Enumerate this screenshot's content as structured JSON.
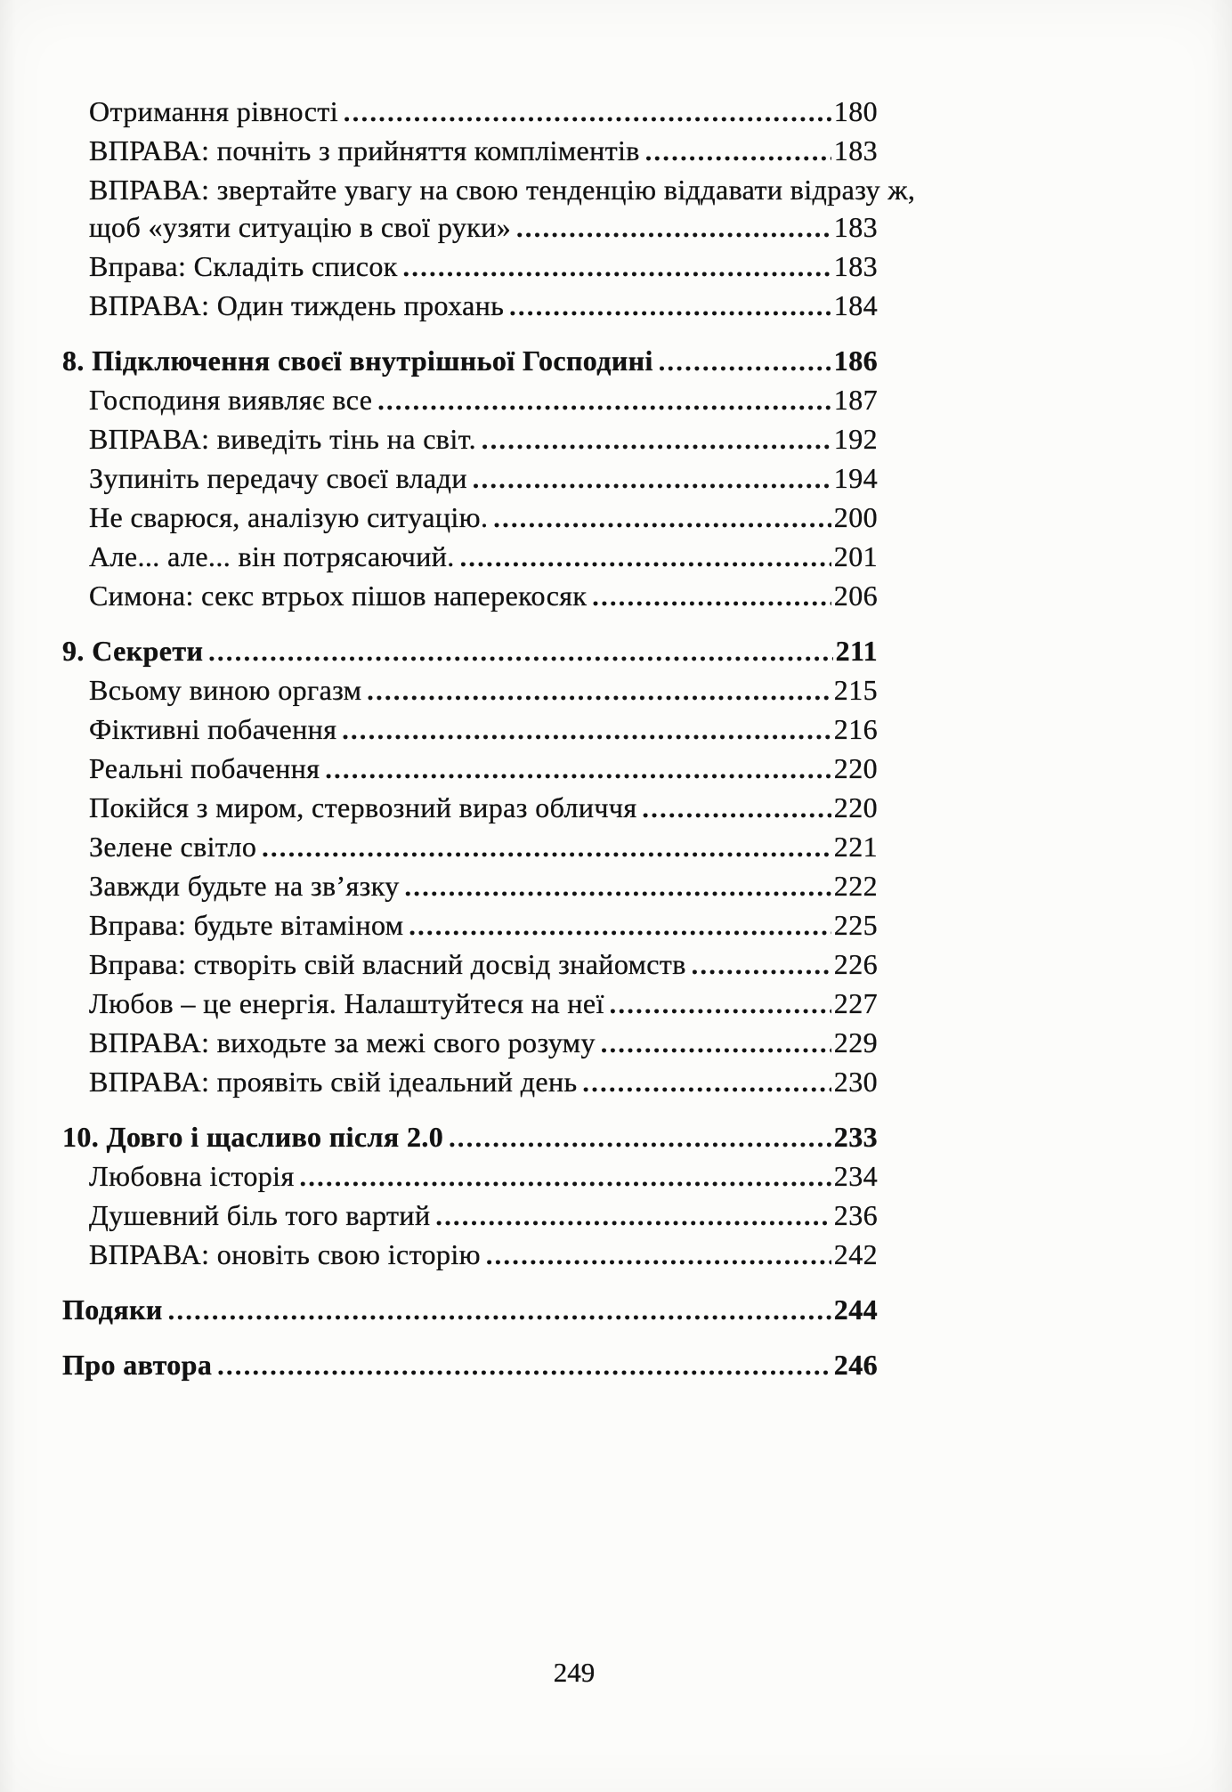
{
  "toc": {
    "entries": [
      {
        "text": "Отримання рівності",
        "page": "180"
      },
      {
        "text": "ВПРАВА: почніть з прийняття компліментів",
        "page": "183"
      },
      {
        "text": "ВПРАВА: звертайте увагу на свою тенденцію віддавати відразу ж,",
        "page": ""
      },
      {
        "text": "щоб «узяти ситуацію в свої руки»",
        "page": "183"
      },
      {
        "text": "Вправа: Складіть список",
        "page": "183"
      },
      {
        "text": "ВПРАВА: Один тиждень прохань",
        "page": "184"
      },
      {
        "text": "8. Підключення своєї внутрішньої Господині",
        "page": "186",
        "bold": true,
        "gap": true
      },
      {
        "text": "Господиня виявляє все",
        "page": "187"
      },
      {
        "text": "ВПРАВА: виведіть тінь на світ.",
        "page": "192"
      },
      {
        "text": "Зупиніть передачу своєї влади",
        "page": "194"
      },
      {
        "text": "Не сварюся, аналізую ситуацію.",
        "page": "200"
      },
      {
        "text": "Але... але... він потрясаючий.",
        "page": "201"
      },
      {
        "text": "Симона: секс втрьох пішов наперекосяк",
        "page": "206"
      },
      {
        "text": "9. Секрети",
        "page": "211",
        "bold": true,
        "gap": true
      },
      {
        "text": "Всьому виною оргазм",
        "page": "215"
      },
      {
        "text": "Фіктивні побачення",
        "page": "216"
      },
      {
        "text": "Реальні побачення",
        "page": "220"
      },
      {
        "text": "Покійся з миром, стервозний вираз обличчя",
        "page": "220"
      },
      {
        "text": "Зелене світло",
        "page": "221"
      },
      {
        "text": "Завжди будьте на зв’язку",
        "page": "222"
      },
      {
        "text": "Вправа: будьте вітаміном",
        "page": "225"
      },
      {
        "text": "Вправа: створіть свій власний досвід знайомств",
        "page": "226"
      },
      {
        "text": "Любов – це енергія. Налаштуйтеся на неї",
        "page": "227"
      },
      {
        "text": "ВПРАВА: виходьте за межі свого розуму",
        "page": "229"
      },
      {
        "text": "ВПРАВА: проявіть свій ідеальний день",
        "page": "230"
      },
      {
        "text": "10. Довго і щасливо після 2.0",
        "page": "233",
        "bold": true,
        "gap": true
      },
      {
        "text": "Любовна історія",
        "page": "234"
      },
      {
        "text": "Душевний біль того вартий",
        "page": "236"
      },
      {
        "text": "ВПРАВА: оновіть свою історію",
        "page": "242"
      },
      {
        "text": "Подяки",
        "page": "244",
        "bold": true,
        "gap": true
      },
      {
        "text": "Про автора",
        "page": "246",
        "bold": true,
        "gap": true
      }
    ],
    "footer_page_number": "249"
  }
}
